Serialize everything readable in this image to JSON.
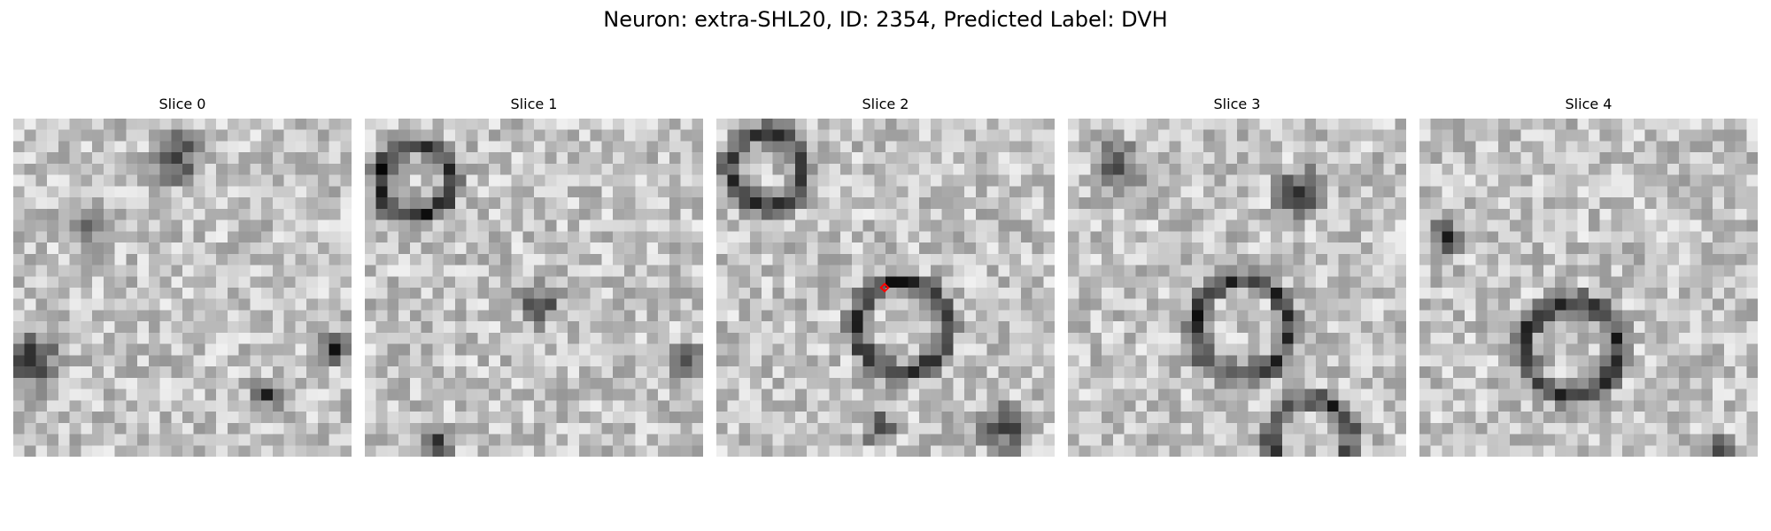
{
  "figure": {
    "title": "Neuron: extra-SHL20, ID: 2354, Predicted Label: DVH"
  },
  "slices": [
    {
      "label": "Slice 0"
    },
    {
      "label": "Slice 1"
    },
    {
      "label": "Slice 2",
      "marker": true,
      "marker_color": "#ff0000"
    },
    {
      "label": "Slice 3"
    },
    {
      "label": "Slice 4"
    }
  ],
  "colors": {
    "background": "#ffffff",
    "marker": "#ff0000"
  }
}
